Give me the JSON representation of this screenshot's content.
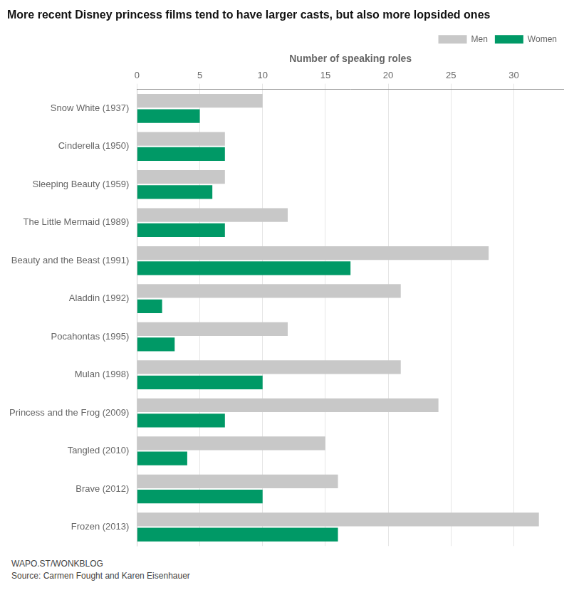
{
  "chart_data": {
    "type": "bar",
    "orientation": "horizontal",
    "title": "More recent Disney princess films tend to have larger casts, but also more lopsided ones",
    "xlabel": "Number of speaking roles",
    "categories": [
      "Snow White (1937)",
      "Cinderella (1950)",
      "Sleeping Beauty (1959)",
      "The Little Mermaid (1989)",
      "Beauty and the Beast (1991)",
      "Aladdin (1992)",
      "Pocahontas (1995)",
      "Mulan (1998)",
      "Princess and the Frog (2009)",
      "Tangled (2010)",
      "Brave (2012)",
      "Frozen (2013)"
    ],
    "series": [
      {
        "name": "Men",
        "color": "#c8c8c8",
        "values": [
          10,
          7,
          7,
          12,
          28,
          21,
          12,
          21,
          24,
          15,
          16,
          32
        ]
      },
      {
        "name": "Women",
        "color": "#009966",
        "values": [
          5,
          7,
          6,
          7,
          17,
          2,
          3,
          10,
          7,
          4,
          10,
          16
        ]
      }
    ],
    "xlim": [
      0,
      34
    ],
    "xticks": [
      0,
      5,
      10,
      15,
      20,
      25,
      30
    ],
    "grid": true,
    "legend": "top",
    "annotations": [
      "WAPO.ST/WONKBLOG",
      "Source: Carmen Fought and Karen Eisenhauer"
    ]
  }
}
